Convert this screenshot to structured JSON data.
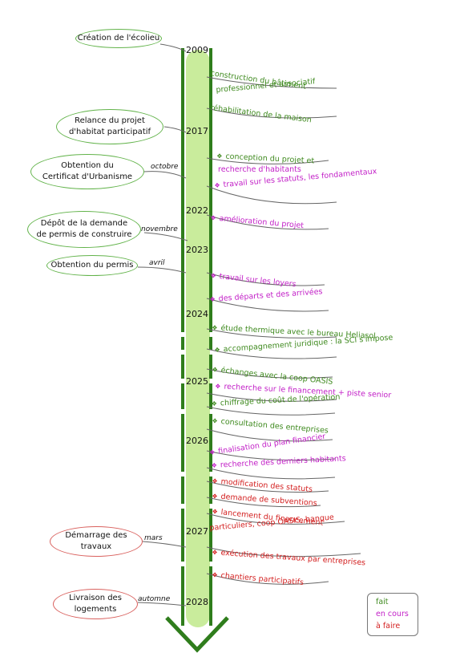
{
  "milestones": [
    {
      "label": "Création de l'écolieu",
      "status": "done"
    },
    {
      "label": "Relance du projet\nd'habitat participatif",
      "status": "done"
    },
    {
      "label": "Obtention du\nCertificat d'Urbanisme",
      "status": "done"
    },
    {
      "label": "Dépôt de la demande\nde permis de construire",
      "status": "done"
    },
    {
      "label": "Obtention du permis",
      "status": "done"
    },
    {
      "label": "Démarrage des\ntravaux",
      "status": "todo"
    },
    {
      "label": "Livraison des\nlogements",
      "status": "todo"
    }
  ],
  "years": [
    "2009",
    "2017",
    "2022",
    "2023",
    "2024",
    "2025",
    "2026",
    "2027",
    "2028"
  ],
  "months": [
    "octobre",
    "novembre",
    "avril",
    "mars",
    "automne"
  ],
  "events": [
    {
      "text": "construction du bâtiment",
      "status": "done",
      "bullet": false
    },
    {
      "text": "professionnel et associatif",
      "status": "done",
      "bullet": false
    },
    {
      "text": "réhabilitation de la maison",
      "status": "done",
      "bullet": false
    },
    {
      "text": "conception du projet et",
      "status": "done",
      "bullet": true
    },
    {
      "text": "recherche d'habitants",
      "status": "in-progress",
      "bullet": false
    },
    {
      "text": "travail sur les statuts, les fondamentaux",
      "status": "in-progress",
      "bullet": true
    },
    {
      "text": "amélioration du projet",
      "status": "in-progress",
      "bullet": true
    },
    {
      "text": "travail sur les loyers",
      "status": "in-progress",
      "bullet": true
    },
    {
      "text": "des départs et des arrivées",
      "status": "in-progress",
      "bullet": true
    },
    {
      "text": "étude thermique avec le bureau Heliasol",
      "status": "done",
      "bullet": true
    },
    {
      "text": "accompagnement juridique : la SCI s'impose",
      "status": "done",
      "bullet": true
    },
    {
      "text": "échanges avec la coop OASIS",
      "status": "done",
      "bullet": true
    },
    {
      "text": "recherche sur le financement + piste senior",
      "status": "in-progress",
      "bullet": true
    },
    {
      "text": "chiffrage du coût de l'opération",
      "status": "done",
      "bullet": true
    },
    {
      "text": "consultation des entreprises",
      "status": "done",
      "bullet": true
    },
    {
      "text": "finalisation du plan financier",
      "status": "in-progress",
      "bullet": true
    },
    {
      "text": "recherche des derniers habitants",
      "status": "in-progress",
      "bullet": true
    },
    {
      "text": "modification des statuts",
      "status": "todo",
      "bullet": true
    },
    {
      "text": "demande de subventions",
      "status": "todo",
      "bullet": true
    },
    {
      "text": "lancement du financement",
      "status": "todo",
      "bullet": true
    },
    {
      "text": "particuliers, coop OASIS, banque",
      "status": "todo",
      "bullet": false
    },
    {
      "text": "exécution des travaux par entreprises",
      "status": "todo",
      "bullet": true
    },
    {
      "text": "chantiers participatifs",
      "status": "todo",
      "bullet": true
    }
  ],
  "legend": {
    "done": "fait",
    "in_progress": "en cours",
    "todo": "à faire"
  },
  "colors": {
    "done": "#3f8a1f",
    "in_progress": "#c21fc7",
    "todo": "#d31f1f",
    "rail": "#2f7d1c",
    "fill": "#c9ec9c"
  }
}
